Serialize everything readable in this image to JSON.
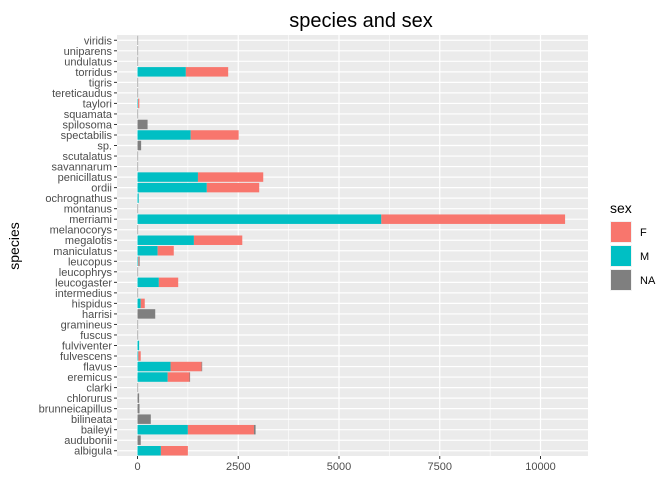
{
  "chart_data": {
    "type": "bar",
    "orientation": "horizontal",
    "stacked": true,
    "title": "species and sex",
    "xlabel": "",
    "ylabel": "species",
    "xlim": [
      0,
      10600
    ],
    "xticks": [
      0,
      2500,
      5000,
      7500,
      10000
    ],
    "xtick_labels": [
      "0",
      "2500",
      "5000",
      "7500",
      "10000"
    ],
    "grid": true,
    "background": "#EBEBEB",
    "categories": [
      "albigula",
      "audubonii",
      "baileyi",
      "bilineata",
      "brunneicapillus",
      "chlorurus",
      "clarki",
      "eremicus",
      "flavus",
      "fulvescens",
      "fulviventer",
      "fuscus",
      "gramineus",
      "harrisi",
      "hispidus",
      "intermedius",
      "leucogaster",
      "leucophrys",
      "leucopus",
      "maniculatus",
      "megalotis",
      "melanocorys",
      "merriami",
      "montanus",
      "ochrognathus",
      "ordii",
      "penicillatus",
      "savannarum",
      "scutalatus",
      "sp.",
      "spectabilis",
      "spilosoma",
      "squamata",
      "taylori",
      "tereticaudus",
      "tigris",
      "torridus",
      "undulatus",
      "uniparens",
      "viridis"
    ],
    "series": [
      {
        "name": "M",
        "color": "#00BFC4",
        "values": [
          580,
          0,
          1250,
          0,
          0,
          0,
          0,
          750,
          820,
          20,
          40,
          0,
          0,
          0,
          80,
          0,
          530,
          0,
          20,
          500,
          1400,
          0,
          6050,
          0,
          30,
          1720,
          1500,
          0,
          0,
          0,
          1320,
          0,
          0,
          15,
          0,
          0,
          1200,
          0,
          0,
          0
        ]
      },
      {
        "name": "F",
        "color": "#F8766D",
        "values": [
          670,
          0,
          1640,
          0,
          0,
          0,
          0,
          540,
          770,
          60,
          0,
          0,
          0,
          0,
          100,
          0,
          480,
          0,
          20,
          400,
          1200,
          0,
          4560,
          0,
          0,
          1300,
          1620,
          0,
          0,
          0,
          1190,
          0,
          0,
          30,
          0,
          0,
          1050,
          0,
          0,
          0
        ]
      },
      {
        "name": "NA",
        "color": "#7F7F7F",
        "values": [
          0,
          80,
          40,
          330,
          50,
          40,
          10,
          10,
          10,
          0,
          0,
          5,
          8,
          440,
          0,
          5,
          0,
          10,
          10,
          0,
          0,
          10,
          0,
          8,
          0,
          0,
          0,
          10,
          5,
          90,
          0,
          250,
          10,
          0,
          5,
          10,
          0,
          5,
          5,
          5
        ]
      }
    ],
    "stack_order": [
      "M",
      "F",
      "NA"
    ],
    "legend": {
      "title": "sex",
      "position": "right",
      "items": [
        "F",
        "M",
        "NA"
      ]
    }
  }
}
